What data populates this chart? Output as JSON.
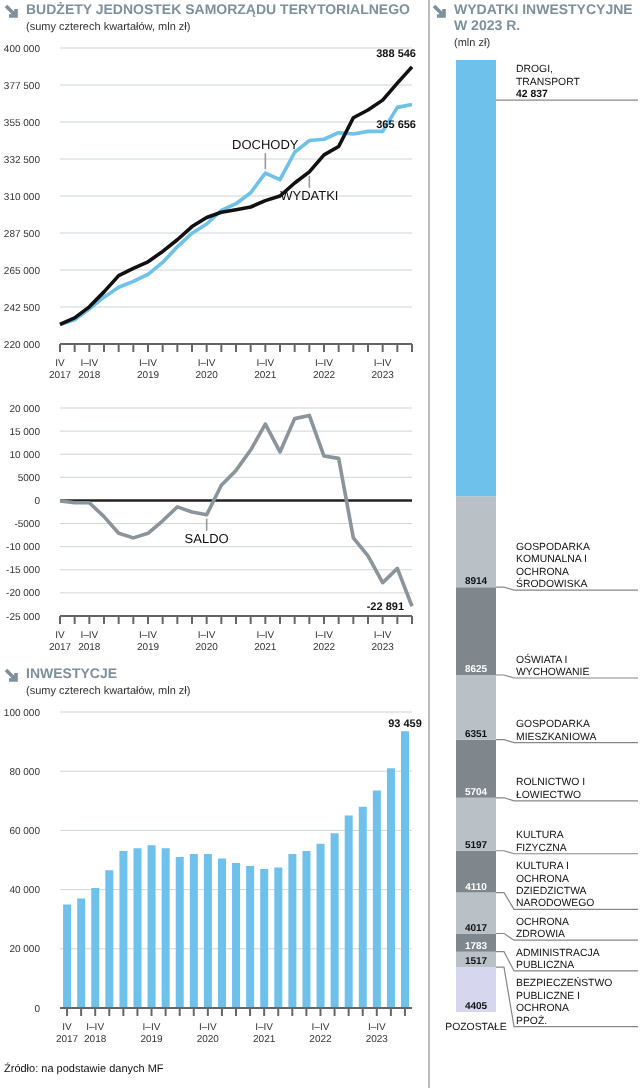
{
  "chart_data": [
    {
      "type": "line",
      "title": "BUDŻETY JEDNOSTEK SAMORZĄDU TERYTORIALNEGO",
      "subtitle": "(sumy czterech kwartałów, mln zł)",
      "categories": [
        "IV 2017",
        null,
        "I–IV 2018",
        null,
        null,
        null,
        "I–IV 2019",
        null,
        null,
        null,
        "I–IV 2020",
        null,
        null,
        null,
        "I–IV 2021",
        null,
        null,
        null,
        "I–IV 2022",
        null,
        null,
        null,
        "I–IV 2023",
        null,
        null
      ],
      "series": [
        {
          "name": "DOCHODY",
          "color": "#6ec1ea",
          "values": [
            231900,
            234700,
            241400,
            248500,
            254500,
            258100,
            262400,
            269600,
            279100,
            287400,
            293000,
            301300,
            305300,
            312000,
            323900,
            319900,
            336600,
            343700,
            344500,
            348500,
            347700,
            349300,
            349300,
            363900,
            365656
          ],
          "value_labels": [
            null,
            null,
            null,
            null,
            null,
            null,
            null,
            null,
            null,
            null,
            null,
            null,
            null,
            null,
            null,
            null,
            null,
            null,
            null,
            null,
            null,
            null,
            null,
            null,
            "365 656"
          ]
        },
        {
          "name": "WYDATKI",
          "color": "#111111",
          "values": [
            231900,
            235900,
            242600,
            251700,
            261600,
            266000,
            270000,
            276300,
            283400,
            291400,
            296900,
            300100,
            301700,
            303300,
            307200,
            310000,
            317900,
            324700,
            335000,
            340100,
            357600,
            362300,
            368300,
            378600,
            388546
          ],
          "value_labels": [
            null,
            null,
            null,
            null,
            null,
            null,
            null,
            null,
            null,
            null,
            null,
            null,
            null,
            null,
            null,
            null,
            null,
            null,
            null,
            null,
            null,
            null,
            null,
            null,
            "388 546"
          ]
        }
      ],
      "ylim": [
        220000,
        400000
      ],
      "yticks": [
        {
          "value": 220000,
          "label": "220 000"
        },
        {
          "value": 242500,
          "label": "242 500"
        },
        {
          "value": 265000,
          "label": "265 000"
        },
        {
          "value": 287500,
          "label": "287 500"
        },
        {
          "value": 310000,
          "label": "310 000"
        },
        {
          "value": 332500,
          "label": "332 500"
        },
        {
          "value": 355000,
          "label": "355 000"
        },
        {
          "value": 377500,
          "label": "377 500"
        },
        {
          "value": 400000,
          "label": "400 000"
        }
      ],
      "grid": "y"
    },
    {
      "type": "line",
      "categories": [
        "IV 2017",
        null,
        "I–IV 2018",
        null,
        null,
        null,
        "I–IV 2019",
        null,
        null,
        null,
        "I–IV 2020",
        null,
        null,
        null,
        "I–IV 2021",
        null,
        null,
        null,
        "I–IV 2022",
        null,
        null,
        null,
        "I–IV 2023",
        null,
        null
      ],
      "series": [
        {
          "name": "SALDO",
          "color": "#8a949b",
          "values": [
            -100,
            -500,
            -500,
            -3500,
            -7100,
            -8100,
            -7100,
            -4400,
            -1400,
            -2500,
            -3100,
            3300,
            6500,
            10900,
            16500,
            10500,
            17700,
            18400,
            9600,
            9100,
            -8100,
            -12000,
            -17800,
            -14700,
            -22891
          ],
          "value_labels": [
            null,
            null,
            null,
            null,
            null,
            null,
            null,
            null,
            null,
            null,
            null,
            null,
            null,
            null,
            null,
            null,
            null,
            null,
            null,
            null,
            null,
            null,
            null,
            null,
            "-22 891"
          ]
        }
      ],
      "ylim": [
        -25000,
        20000
      ],
      "yticks": [
        {
          "value": -25000,
          "label": "-25 000"
        },
        {
          "value": -20000,
          "label": "-20 000"
        },
        {
          "value": -15000,
          "label": "-15 000"
        },
        {
          "value": -10000,
          "label": "-10 000"
        },
        -5000,
        0,
        5000,
        {
          "value": 10000,
          "label": "10 000"
        },
        {
          "value": 15000,
          "label": "15 000"
        },
        {
          "value": 20000,
          "label": "20 000"
        }
      ],
      "grid": "y",
      "ref_lines": [
        {
          "axis": "y",
          "value": 0,
          "color": "#222222"
        }
      ]
    },
    {
      "type": "bar",
      "title": "INWESTYCJE",
      "subtitle": "(sumy czterech kwartałów, mln zł)",
      "categories": [
        "IV 2017",
        null,
        "I–IV 2018",
        null,
        null,
        null,
        "I–IV 2019",
        null,
        null,
        null,
        "I–IV 2020",
        null,
        null,
        null,
        "I–IV 2021",
        null,
        null,
        null,
        "I–IV 2022",
        null,
        null,
        null,
        "I–IV 2023",
        null,
        null
      ],
      "series": [
        {
          "color": "#6ec1ea",
          "values": [
            35000,
            37000,
            40500,
            46500,
            53000,
            54000,
            55000,
            54000,
            51000,
            52000,
            52000,
            50500,
            49000,
            48000,
            47000,
            47500,
            52000,
            53000,
            55500,
            59000,
            65000,
            68000,
            73500,
            81000,
            93459
          ],
          "value_labels": [
            null,
            null,
            null,
            null,
            null,
            null,
            null,
            null,
            null,
            null,
            null,
            null,
            null,
            null,
            null,
            null,
            null,
            null,
            null,
            null,
            null,
            null,
            null,
            null,
            "93 459"
          ]
        }
      ],
      "ylim": [
        0,
        100000
      ],
      "yticks": [
        0,
        {
          "value": 20000,
          "label": "20 000"
        },
        {
          "value": 40000,
          "label": "40 000"
        },
        {
          "value": 60000,
          "label": "60 000"
        },
        {
          "value": 80000,
          "label": "80 000"
        },
        {
          "value": 100000,
          "label": "100 000"
        }
      ],
      "grid": "y",
      "annotations": [
        "Źródło: na podstawie danych MF"
      ]
    },
    {
      "type": "bar",
      "stacked": true,
      "title": "WYDATKI INWESTYCYJNE W 2023 R.",
      "subtitle": "(mln zł)",
      "categories": [
        null
      ],
      "series": [
        {
          "name": "POZOSTAŁE",
          "color": "#d6d6ee",
          "values": [
            4405
          ],
          "value_labels": [
            "4405"
          ]
        },
        {
          "name": "BEZPIECZEŃSTWO PUBLICZNE I OCHRONA PPOŻ.",
          "color": "#b9c1c7",
          "values": [
            1517
          ],
          "value_labels": [
            "1517"
          ]
        },
        {
          "name": "ADMINISTRACJA PUBLICZNA",
          "color": "#7f878d",
          "values": [
            1783
          ],
          "value_labels": [
            "1783"
          ]
        },
        {
          "name": "OCHRONA ZDROWIA",
          "color": "#b9c1c7",
          "values": [
            4017
          ],
          "value_labels": [
            "4017"
          ]
        },
        {
          "name": "KULTURA I OCHRONA DZIEDZICTWA NARODOWEGO",
          "color": "#7f878d",
          "values": [
            4110
          ],
          "value_labels": [
            "4110"
          ]
        },
        {
          "name": "KULTURA FIZYCZNA",
          "color": "#b9c1c7",
          "values": [
            5197
          ],
          "value_labels": [
            "5197"
          ]
        },
        {
          "name": "ROLNICTWO I ŁOWIECTWO",
          "color": "#7f878d",
          "values": [
            5704
          ],
          "value_labels": [
            "5704"
          ]
        },
        {
          "name": "GOSPODARKA MIESZKANIOWA",
          "color": "#b9c1c7",
          "values": [
            6351
          ],
          "value_labels": [
            "6351"
          ]
        },
        {
          "name": "OŚWIATA I WYCHOWANIE",
          "color": "#7f878d",
          "values": [
            8625
          ],
          "value_labels": [
            "8625"
          ]
        },
        {
          "name": "GOSPODARKA KOMUNALNA I OCHRONA ŚRODOWISKA",
          "color": "#b9c1c7",
          "values": [
            8914
          ],
          "value_labels": [
            "8914"
          ]
        },
        {
          "name": "DROGI, TRANSPORT",
          "color": "#6ec1ea",
          "values": [
            42837
          ],
          "value_labels": [
            "42 837"
          ]
        }
      ]
    }
  ]
}
